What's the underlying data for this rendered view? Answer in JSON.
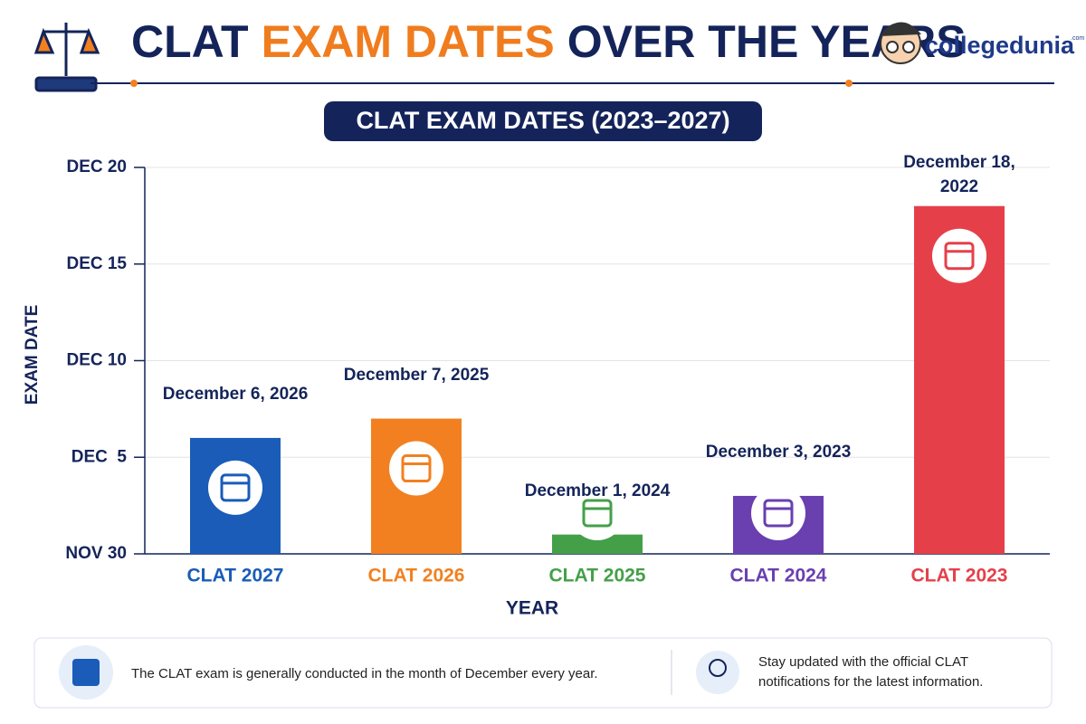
{
  "header": {
    "title_parts": [
      "CLAT",
      "EXAM DATES",
      "OVER THE YEARS"
    ],
    "brand": "collegedunia",
    "brand_suffix": ".com"
  },
  "chart_data": {
    "type": "bar",
    "title": "CLAT EXAM DATES (2023–2027)",
    "x_label": "YEAR",
    "y_label": "EXAM DATE",
    "categories": [
      "CLAT 2027",
      "CLAT 2026",
      "CLAT 2025",
      "CLAT 2024",
      "CLAT 2023"
    ],
    "values": [
      6,
      7,
      1,
      3,
      18
    ],
    "value_labels": [
      "December 6, 2026",
      "December 7, 2025",
      "December 1, 2024",
      "December 3, 2023",
      "December 18, 2022"
    ],
    "colors": [
      "#1a5cb8",
      "#f28020",
      "#44a048",
      "#6a3fb0",
      "#e5404a"
    ],
    "ylim": [
      0,
      20
    ],
    "yticks": [
      {
        "value": 0,
        "label": "NOV 30"
      },
      {
        "value": 5,
        "label": "DEC  5"
      },
      {
        "value": 10,
        "label": "DEC 10"
      },
      {
        "value": 15,
        "label": "DEC 15"
      },
      {
        "value": 20,
        "label": "DEC 20"
      }
    ],
    "grid": true
  },
  "notes": [
    "The CLAT exam is generally conducted in the month of December every year.",
    "Stay updated with the official CLAT notifications for the latest information."
  ]
}
